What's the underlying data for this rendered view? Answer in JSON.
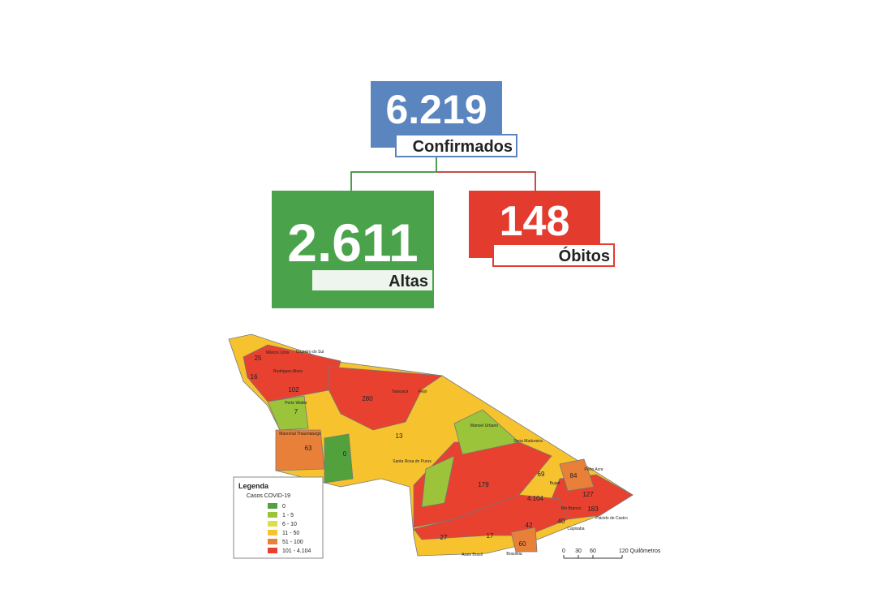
{
  "summary": {
    "confirmed": {
      "value": "6.219",
      "label": "Confirmados"
    },
    "recovered": {
      "value": "2.611",
      "label": "Altas"
    },
    "deaths": {
      "value": "148",
      "label": "Óbitos"
    }
  },
  "map": {
    "legend": {
      "title": "Legenda",
      "subtitle": "Casos COVID-19",
      "items": [
        "0",
        "1 - 5",
        "6 - 10",
        "11 - 50",
        "51 - 100",
        "101 - 4.104"
      ]
    },
    "scale": [
      "0",
      "30",
      "60",
      "120 Quilômetros"
    ],
    "labels": [
      "25",
      "16",
      "102",
      "7",
      "63",
      "280",
      "13",
      "0",
      "179",
      "4.104",
      "69",
      "84",
      "127",
      "183",
      "40",
      "42",
      "27",
      "17",
      "60"
    ],
    "places": [
      "Mâncio Lima",
      "Cruzeiro do Sul",
      "Rodrigues Alves",
      "Porto Walter",
      "Marechal Thaumaturgo",
      "Tarauacá",
      "Feijó",
      "Manoel Urbano",
      "Sena Madureira",
      "Santa Rosa do Purus",
      "Bujari",
      "Porto Acre",
      "Rio Branco",
      "Plácido de Castro",
      "Capixaba",
      "Assis Brasil",
      "Brasiléia"
    ]
  }
}
